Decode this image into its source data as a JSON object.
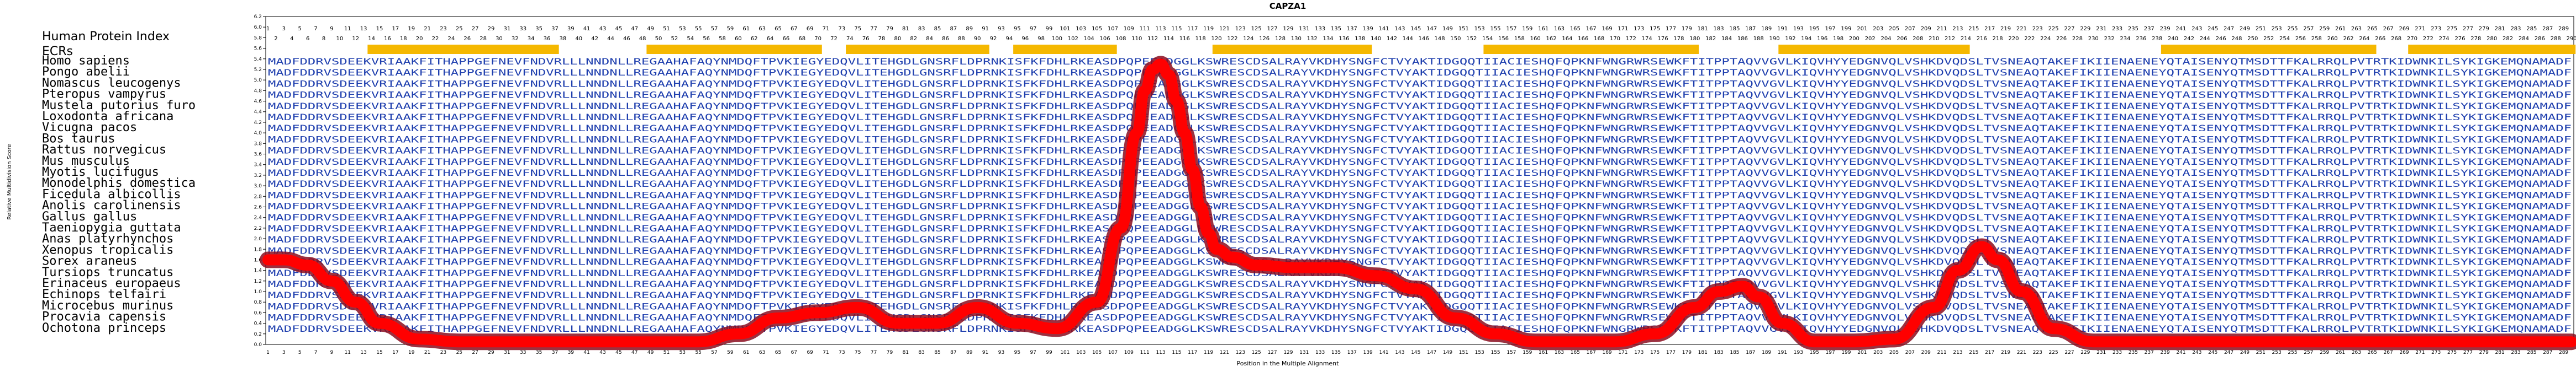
{
  "chart_data": {
    "type": "line",
    "title": "CAPZA1",
    "xlabel": "Position in the Multiple Alignment",
    "ylabel": "Relative Multidivision Score",
    "xlim": [
      1,
      290
    ],
    "ylim": [
      0,
      6.2
    ],
    "yticks": [
      0.0,
      0.2,
      0.4,
      0.6,
      0.8,
      1.0,
      1.2,
      1.4,
      1.6,
      1.8,
      2.0,
      2.2,
      2.4,
      2.6,
      2.8,
      3.0,
      3.2,
      3.4,
      3.6,
      3.8,
      4.0,
      4.2,
      4.4,
      4.6,
      4.8,
      5.0,
      5.2,
      5.4,
      5.6,
      5.8,
      6.0,
      6.2
    ],
    "human_index_label": "Human Protein Index",
    "ecr_label": "ECRs",
    "ecr_ranges": [
      [
        14,
        37
      ],
      [
        49,
        70
      ],
      [
        74,
        91
      ],
      [
        95,
        107
      ],
      [
        120,
        139
      ],
      [
        154,
        180
      ],
      [
        191,
        214
      ],
      [
        239,
        265
      ],
      [
        270,
        290
      ]
    ],
    "species": [
      "Homo sapiens",
      "Pongo abelii",
      "Nomascus leucogenys",
      "Pteropus vampyrus",
      "Mustela putorius furo",
      "Loxodonta africana",
      "Vicugna pacos",
      "Bos taurus",
      "Rattus norvegicus",
      "Mus musculus",
      "Myotis lucifugus",
      "Monodelphis domestica",
      "Ficedula albicollis",
      "Anolis carolinensis",
      "Gallus gallus",
      "Taeniopygia guttata",
      "Anas platyrhynchos",
      "Xenopus tropicalis",
      "Sorex araneus",
      "Tursiops truncatus",
      "Erinaceus europaeus",
      "Echinops telfairi",
      "Microcebus murinus",
      "Procavia capensis",
      "Ochotona princeps"
    ],
    "sequence_prefix": "MADFDDRVSDEEKVRIAAKFITHAPPGEFNEVFNDVRLLLNNDNLLREGAAHAFAQYNMDQFTPVKIEGYEDQVLITEHGDLGNSRFLDPRNKISFKFDHLRKEASDPQPEEADGGLKSWRESCDSALRAYVKDHYSNGFCTVYAKTIDGQQTIIACIESHQFQPKNFWNGRWRSEWKFTITPPTAQVVGVLKIQVHYYEDGNVQLVSHKDVQDSLTVSNEAQTAKEFIKIIENAENEYQTAISENYQTMSDTTFKALRRQLPVTRTKIDWNKILSYKIGKEMQNA",
    "line_color": "#ff0000",
    "series": [
      {
        "x": [
          1,
          3,
          6,
          9,
          12,
          15,
          20,
          25,
          30,
          35,
          40,
          45,
          50,
          55,
          60,
          65,
          70,
          75,
          80,
          85,
          90,
          95,
          100,
          105,
          108,
          110,
          111,
          112,
          113,
          114,
          115,
          116,
          117,
          118,
          119,
          120,
          122,
          125,
          130,
          135,
          140,
          145,
          150,
          155,
          160,
          165,
          170,
          175,
          180,
          183,
          186,
          188,
          191,
          195,
          200,
          205,
          210,
          213,
          216,
          218,
          221,
          225,
          230,
          235,
          240,
          245,
          250,
          255,
          260,
          265,
          270,
          275,
          280,
          285,
          290
        ],
        "y": [
          1.6,
          1.6,
          1.5,
          1.2,
          0.8,
          0.4,
          0.1,
          0.05,
          0.05,
          0.05,
          0.05,
          0.05,
          0.05,
          0.05,
          0.2,
          0.5,
          0.6,
          0.7,
          0.4,
          0.4,
          0.7,
          0.4,
          0.3,
          0.8,
          2.2,
          4.0,
          4.8,
          5.2,
          5.3,
          5.1,
          4.6,
          4.0,
          3.3,
          2.6,
          2.1,
          1.8,
          1.65,
          1.5,
          1.45,
          1.45,
          1.3,
          1.05,
          0.5,
          0.2,
          0.05,
          0.05,
          0.05,
          0.2,
          0.7,
          1.0,
          1.1,
          0.9,
          0.4,
          0.05,
          0.05,
          0.1,
          0.7,
          1.4,
          1.85,
          1.6,
          1.0,
          0.3,
          0.05,
          0.05,
          0.05,
          0.05,
          0.05,
          0.05,
          0.05,
          0.05,
          0.05,
          0.05,
          0.05,
          0.05,
          0.05
        ]
      }
    ]
  }
}
